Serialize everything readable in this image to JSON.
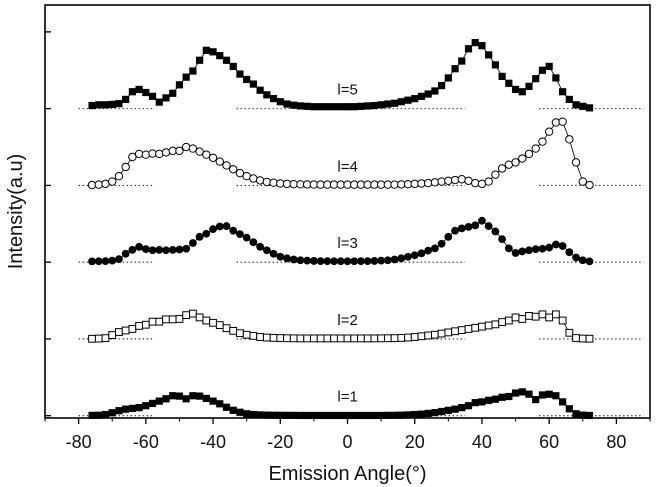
{
  "chart_data": {
    "type": "scatter",
    "title": "",
    "xlabel": "Emission Angle(°)",
    "ylabel": "Intensity(a.u)",
    "xlim": [
      -90,
      90
    ],
    "xticks": [
      -80,
      -60,
      -40,
      -20,
      0,
      20,
      40,
      60,
      80
    ],
    "y_tick_labels_shown": false,
    "grid": false,
    "legend": "none",
    "baseline_style": "dotted",
    "series": [
      {
        "name": "l=1",
        "label": "l=1",
        "marker": "filled-square",
        "offset": 0,
        "x": [
          -76,
          -74,
          -72,
          -70,
          -68,
          -66,
          -64,
          -62,
          -60,
          -58,
          -56,
          -54,
          -52,
          -50,
          -48,
          -46,
          -44,
          -42,
          -40,
          -38,
          -36,
          -34,
          -32,
          -30,
          -28,
          -26,
          -24,
          -22,
          -20,
          -18,
          -16,
          -14,
          -12,
          -10,
          -8,
          -6,
          -4,
          -2,
          0,
          2,
          4,
          6,
          8,
          10,
          12,
          14,
          16,
          18,
          20,
          22,
          24,
          26,
          28,
          30,
          32,
          34,
          36,
          38,
          40,
          42,
          44,
          46,
          48,
          50,
          52,
          54,
          56,
          58,
          60,
          62,
          64,
          66,
          68,
          70,
          72
        ],
        "y": [
          0.4,
          0.6,
          1.5,
          3.8,
          6.5,
          8.5,
          9.5,
          10.5,
          13.0,
          16.0,
          19.0,
          22.0,
          26.0,
          25.5,
          22.0,
          26.0,
          25.5,
          22.5,
          19.0,
          15.5,
          11.0,
          7.0,
          4.5,
          2.5,
          1.5,
          1.0,
          0.8,
          0.6,
          0.5,
          0.4,
          0.4,
          0.3,
          0.3,
          0.3,
          0.3,
          0.3,
          0.3,
          0.3,
          0.3,
          0.3,
          0.3,
          0.3,
          0.3,
          0.3,
          0.4,
          0.5,
          0.7,
          1.0,
          1.5,
          2.0,
          3.0,
          4.0,
          5.5,
          7.0,
          8.5,
          10.5,
          13.0,
          17.0,
          18.0,
          20.0,
          21.5,
          24.0,
          25.0,
          29.5,
          31.0,
          28.0,
          21.0,
          27.0,
          28.0,
          26.0,
          18.0,
          9.0,
          2.5,
          0.7,
          0.3
        ]
      },
      {
        "name": "l=2",
        "label": "l=2",
        "marker": "open-square",
        "offset": 100,
        "x": [
          -76,
          -74,
          -72,
          -70,
          -68,
          -66,
          -64,
          -62,
          -60,
          -58,
          -56,
          -54,
          -52,
          -50,
          -48,
          -46,
          -44,
          -42,
          -40,
          -38,
          -36,
          -34,
          -32,
          -30,
          -28,
          -26,
          -24,
          -22,
          -20,
          -18,
          -16,
          -14,
          -12,
          -10,
          -8,
          -6,
          -4,
          -2,
          0,
          2,
          4,
          6,
          8,
          10,
          12,
          14,
          16,
          18,
          20,
          22,
          24,
          26,
          28,
          30,
          32,
          34,
          36,
          38,
          40,
          42,
          44,
          46,
          48,
          50,
          52,
          54,
          56,
          58,
          60,
          62,
          64,
          66,
          68,
          70,
          72
        ],
        "y": [
          0.2,
          0.5,
          1.0,
          5.0,
          9.0,
          11.0,
          13.0,
          17.0,
          18.5,
          22.5,
          22.5,
          25.5,
          25.5,
          26.0,
          31.0,
          33.0,
          28.0,
          24.0,
          21.0,
          18.0,
          14.0,
          10.5,
          7.5,
          5.5,
          4.0,
          2.5,
          1.8,
          1.4,
          1.1,
          0.9,
          0.8,
          0.7,
          0.7,
          0.7,
          0.7,
          0.7,
          0.7,
          0.7,
          0.7,
          0.7,
          0.7,
          0.7,
          0.7,
          0.8,
          0.9,
          1.0,
          1.3,
          1.8,
          2.5,
          3.5,
          4.5,
          5.5,
          7.0,
          8.5,
          10.0,
          11.5,
          13.0,
          14.5,
          16.0,
          17.5,
          19.0,
          22.0,
          24.0,
          28.0,
          26.0,
          30.0,
          29.0,
          32.0,
          28.0,
          32.0,
          24.0,
          8.0,
          1.2,
          0.5,
          0.3
        ]
      },
      {
        "name": "l=3",
        "label": "l=3",
        "marker": "filled-circle",
        "offset": 200,
        "x": [
          -76,
          -74,
          -72,
          -70,
          -68,
          -66,
          -64,
          -62,
          -60,
          -58,
          -56,
          -54,
          -52,
          -50,
          -48,
          -46,
          -44,
          -42,
          -40,
          -38,
          -36,
          -34,
          -32,
          -30,
          -28,
          -26,
          -24,
          -22,
          -20,
          -18,
          -16,
          -14,
          -12,
          -10,
          -8,
          -6,
          -4,
          -2,
          0,
          2,
          4,
          6,
          8,
          10,
          12,
          14,
          16,
          18,
          20,
          22,
          24,
          26,
          28,
          30,
          32,
          34,
          36,
          38,
          40,
          42,
          44,
          46,
          48,
          50,
          52,
          54,
          56,
          58,
          60,
          62,
          64,
          66,
          68,
          70,
          72
        ],
        "y": [
          1.0,
          1.2,
          1.4,
          2.0,
          4.0,
          11.0,
          16.0,
          20.0,
          17.0,
          15.5,
          16.0,
          15.5,
          16.0,
          16.5,
          17.5,
          25.0,
          33.0,
          37.0,
          43.0,
          46.5,
          47.0,
          41.0,
          36.5,
          32.0,
          26.0,
          20.0,
          15.5,
          11.0,
          7.0,
          5.0,
          3.5,
          2.5,
          2.0,
          1.6,
          1.4,
          1.3,
          1.2,
          1.2,
          1.2,
          1.2,
          1.3,
          1.4,
          1.6,
          2.0,
          2.5,
          3.5,
          5.0,
          7.0,
          9.0,
          11.5,
          15.0,
          18.0,
          24.0,
          33.0,
          41.0,
          44.0,
          46.0,
          48.0,
          54.0,
          47.0,
          40.0,
          30.0,
          18.0,
          12.0,
          14.0,
          15.5,
          17.0,
          17.5,
          19.0,
          23.0,
          21.0,
          13.0,
          6.0,
          2.5,
          1.0
        ]
      },
      {
        "name": "l=4",
        "label": "l=4",
        "marker": "open-circle",
        "offset": 300,
        "x": [
          -76,
          -74,
          -72,
          -70,
          -68,
          -66,
          -64,
          -62,
          -60,
          -58,
          -56,
          -54,
          -52,
          -50,
          -48,
          -46,
          -44,
          -42,
          -40,
          -38,
          -36,
          -34,
          -32,
          -30,
          -28,
          -26,
          -24,
          -22,
          -20,
          -18,
          -16,
          -14,
          -12,
          -10,
          -8,
          -6,
          -4,
          -2,
          0,
          2,
          4,
          6,
          8,
          10,
          12,
          14,
          16,
          18,
          20,
          22,
          24,
          26,
          28,
          30,
          32,
          34,
          36,
          38,
          40,
          42,
          44,
          46,
          48,
          50,
          52,
          54,
          56,
          58,
          60,
          62,
          64,
          66,
          68,
          70,
          72
        ],
        "y": [
          0.5,
          1.0,
          2.0,
          5.0,
          12.0,
          24.0,
          37.0,
          41.0,
          40.0,
          41.5,
          41.0,
          43.0,
          45.0,
          45.0,
          50.0,
          48.0,
          44.0,
          40.0,
          36.0,
          31.0,
          26.0,
          21.0,
          16.0,
          12.0,
          9.0,
          6.5,
          4.5,
          3.5,
          2.5,
          2.0,
          1.6,
          1.4,
          1.2,
          1.1,
          1.0,
          1.0,
          1.0,
          1.0,
          1.0,
          1.0,
          1.0,
          1.0,
          1.0,
          1.0,
          1.0,
          1.1,
          1.3,
          1.6,
          2.0,
          2.5,
          3.0,
          4.0,
          5.0,
          6.0,
          7.0,
          8.0,
          6.0,
          3.0,
          2.0,
          5.0,
          14.0,
          22.0,
          27.0,
          30.0,
          35.0,
          41.0,
          48.0,
          57.0,
          70.0,
          82.0,
          83.0,
          60.0,
          30.0,
          5.0,
          0.5
        ]
      },
      {
        "name": "l=5",
        "label": "l=5",
        "marker": "filled-square",
        "offset": 400,
        "x": [
          -76,
          -74,
          -72,
          -70,
          -68,
          -66,
          -64,
          -62,
          -60,
          -58,
          -56,
          -54,
          -52,
          -50,
          -48,
          -46,
          -44,
          -42,
          -40,
          -38,
          -36,
          -34,
          -32,
          -30,
          -28,
          -26,
          -24,
          -22,
          -20,
          -18,
          -16,
          -14,
          -12,
          -10,
          -8,
          -6,
          -4,
          -2,
          0,
          2,
          4,
          6,
          8,
          10,
          12,
          14,
          16,
          18,
          20,
          22,
          24,
          26,
          28,
          30,
          32,
          34,
          36,
          38,
          40,
          42,
          44,
          46,
          48,
          50,
          52,
          54,
          56,
          58,
          60,
          62,
          64,
          66,
          68,
          70,
          72
        ],
        "y": [
          4.0,
          5.0,
          5.0,
          5.5,
          6.5,
          12.0,
          22.0,
          25.0,
          21.0,
          16.0,
          8.5,
          14.0,
          20.0,
          31.0,
          41.0,
          49.0,
          63.0,
          76.0,
          74.0,
          69.0,
          63.0,
          55.0,
          45.0,
          38.0,
          32.0,
          24.0,
          18.0,
          13.0,
          9.0,
          6.0,
          4.5,
          3.5,
          3.0,
          2.5,
          2.5,
          2.5,
          2.5,
          2.5,
          2.5,
          2.5,
          3.0,
          3.5,
          4.0,
          5.0,
          6.0,
          7.0,
          9.0,
          11.0,
          13.0,
          16.0,
          19.0,
          23.0,
          30.0,
          40.0,
          52.0,
          62.0,
          78.0,
          86.0,
          82.0,
          70.0,
          57.0,
          42.0,
          33.0,
          25.0,
          22.0,
          29.0,
          39.0,
          50.0,
          55.0,
          40.0,
          22.0,
          12.0,
          5.0,
          3.0,
          1.0
        ]
      }
    ]
  }
}
